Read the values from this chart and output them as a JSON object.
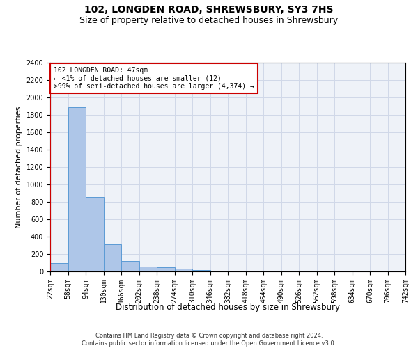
{
  "title": "102, LONGDEN ROAD, SHREWSBURY, SY3 7HS",
  "subtitle": "Size of property relative to detached houses in Shrewsbury",
  "xlabel": "Distribution of detached houses by size in Shrewsbury",
  "ylabel": "Number of detached properties",
  "footer_line1": "Contains HM Land Registry data © Crown copyright and database right 2024.",
  "footer_line2": "Contains public sector information licensed under the Open Government Licence v3.0.",
  "annotation_line1": "102 LONGDEN ROAD: 47sqm",
  "annotation_line2": "← <1% of detached houses are smaller (12)",
  "annotation_line3": ">99% of semi-detached houses are larger (4,374) →",
  "bar_values": [
    100,
    1890,
    860,
    315,
    120,
    60,
    50,
    30,
    20,
    0,
    0,
    0,
    0,
    0,
    0,
    0,
    0,
    0,
    0,
    0
  ],
  "bar_labels": [
    "22sqm",
    "58sqm",
    "94sqm",
    "130sqm",
    "166sqm",
    "202sqm",
    "238sqm",
    "274sqm",
    "310sqm",
    "346sqm",
    "382sqm",
    "418sqm",
    "454sqm",
    "490sqm",
    "526sqm",
    "562sqm",
    "598sqm",
    "634sqm",
    "670sqm",
    "706sqm",
    "742sqm"
  ],
  "bar_color": "#aec6e8",
  "bar_edge_color": "#5b9bd5",
  "marker_color": "#cc0000",
  "ylim": [
    0,
    2400
  ],
  "yticks": [
    0,
    200,
    400,
    600,
    800,
    1000,
    1200,
    1400,
    1600,
    1800,
    2000,
    2200,
    2400
  ],
  "grid_color": "#d0d8e8",
  "bg_color": "#eef2f8",
  "title_fontsize": 10,
  "subtitle_fontsize": 9,
  "axis_label_fontsize": 8,
  "tick_fontsize": 7,
  "footer_fontsize": 6,
  "annotation_fontsize": 7
}
